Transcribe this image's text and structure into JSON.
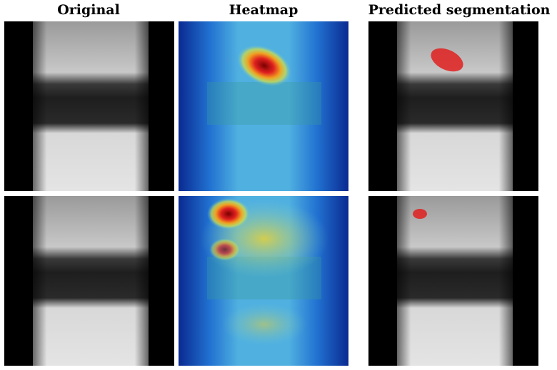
{
  "headers": [
    "Original",
    "Heatmap",
    "Predicted segmentation"
  ]
}
